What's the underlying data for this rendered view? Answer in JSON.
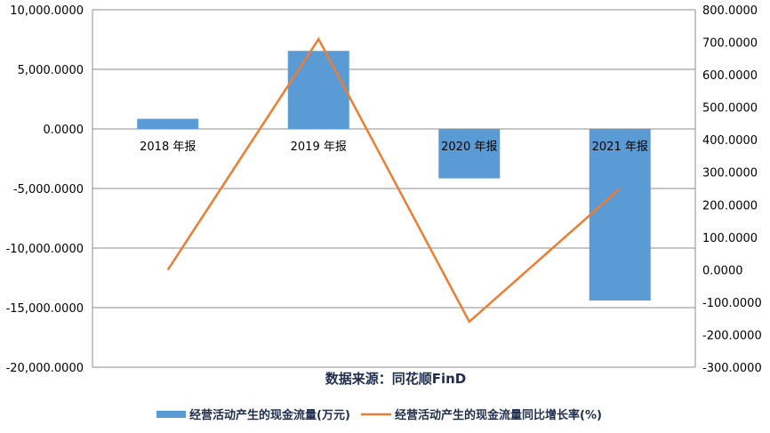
{
  "chart_data": {
    "type": "bar",
    "categories": [
      "2018 年报",
      "2019 年报",
      "2020 年报",
      "2021 年报"
    ],
    "series": [
      {
        "name": "经营活动产生的现金流量(万元)",
        "type": "bar",
        "axis": "left",
        "color": "#5B9BD5",
        "values": [
          850,
          6550,
          -4150,
          -14400
        ]
      },
      {
        "name": "经营活动产生的现金流量同比增长率(%)",
        "type": "line",
        "axis": "right",
        "color": "#ED7D31",
        "values": [
          0,
          710,
          -160,
          250
        ]
      }
    ],
    "y_left": {
      "min": -20000,
      "max": 10000,
      "step": 5000,
      "tick_labels": [
        "10,000.0000",
        "5,000.0000",
        "0.0000",
        "-5,000.0000",
        "-10,000.0000",
        "-15,000.0000",
        "-20,000.0000"
      ]
    },
    "y_right": {
      "min": -300,
      "max": 800,
      "step": 100,
      "tick_labels": [
        "800.0000",
        "700.0000",
        "600.0000",
        "500.0000",
        "400.0000",
        "300.0000",
        "200.0000",
        "100.0000",
        "0.0000",
        "-100.0000",
        "-200.0000",
        "-300.0000"
      ]
    },
    "source_label": "数据来源：同花顺FinD",
    "grid": true,
    "legend_position": "bottom"
  }
}
